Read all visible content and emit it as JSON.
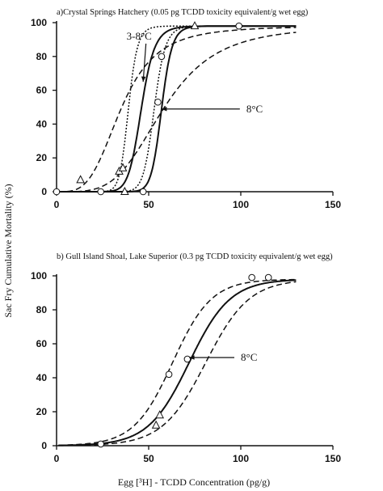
{
  "chart_data": [
    {
      "type": "line",
      "title": "a)Crystal Springs Hatchery (0.05 pg TCDD toxicity equivalent/g wet egg)",
      "xlim": [
        0,
        150
      ],
      "ylim": [
        0,
        100
      ],
      "xticks": [
        0,
        50,
        100,
        150
      ],
      "yticks": [
        0,
        20,
        40,
        60,
        80,
        100
      ],
      "annotations": [
        {
          "text": "3-8°C",
          "x": 38,
          "y": 90
        },
        {
          "text": "8°C",
          "x": 103,
          "y": 47
        }
      ],
      "series": [
        {
          "style": "solid",
          "ec50": 46,
          "slope": 3.2,
          "data_x": [
            33,
            40,
            48,
            55
          ],
          "data_y": [
            0,
            20,
            60,
            98
          ]
        },
        {
          "style": "dotted",
          "ec50": 39,
          "slope": 4.0,
          "data_x": [],
          "data_y": []
        },
        {
          "style": "dashed",
          "ec50": 35,
          "slope": 0.9,
          "data_x": [],
          "data_y": []
        },
        {
          "style": "solid",
          "ec50": 57,
          "slope": 5.0,
          "data_x": [],
          "data_y": []
        },
        {
          "style": "dotted",
          "ec50": 53,
          "slope": 4.4,
          "data_x": [],
          "data_y": []
        },
        {
          "style": "dashed",
          "ec50": 58,
          "slope": 1.0,
          "data_x": [],
          "data_y": []
        }
      ],
      "markers_triangle": {
        "x": [
          13,
          34,
          36,
          37,
          75
        ],
        "y": [
          7,
          12,
          14,
          0,
          98
        ]
      },
      "markers_circle": {
        "x": [
          0,
          24,
          47,
          55,
          57,
          99
        ],
        "y": [
          0,
          0,
          0,
          53,
          80,
          98
        ]
      }
    },
    {
      "type": "line",
      "title": "b) Gull Island Shoal, Lake Superior (0.3 pg TCDD toxicity equivalent/g wet egg)",
      "xlim": [
        0,
        150
      ],
      "ylim": [
        0,
        100
      ],
      "xticks": [
        0,
        50,
        100,
        150
      ],
      "yticks": [
        0,
        20,
        40,
        60,
        80,
        100
      ],
      "annotations": [
        {
          "text": "8°C",
          "x": 100,
          "y": 50
        }
      ],
      "series": [
        {
          "style": "solid",
          "ec50": 72,
          "slope": 0.18
        },
        {
          "style": "dashed",
          "ec50": 63,
          "slope": 0.19
        },
        {
          "style": "dashed",
          "ec50": 81,
          "slope": 0.17
        }
      ],
      "markers_circle": {
        "x": [
          24,
          61,
          71,
          106,
          115
        ],
        "y": [
          1,
          42,
          51,
          99,
          99
        ]
      },
      "markers_triangle": {
        "x": [
          54,
          56
        ],
        "y": [
          12,
          18
        ]
      }
    }
  ],
  "shared_ylabel": "Sac Fry Cumulative Mortality (%)",
  "shared_xlabel": "Egg [³H] - TCDD Concentration (pg/g)"
}
